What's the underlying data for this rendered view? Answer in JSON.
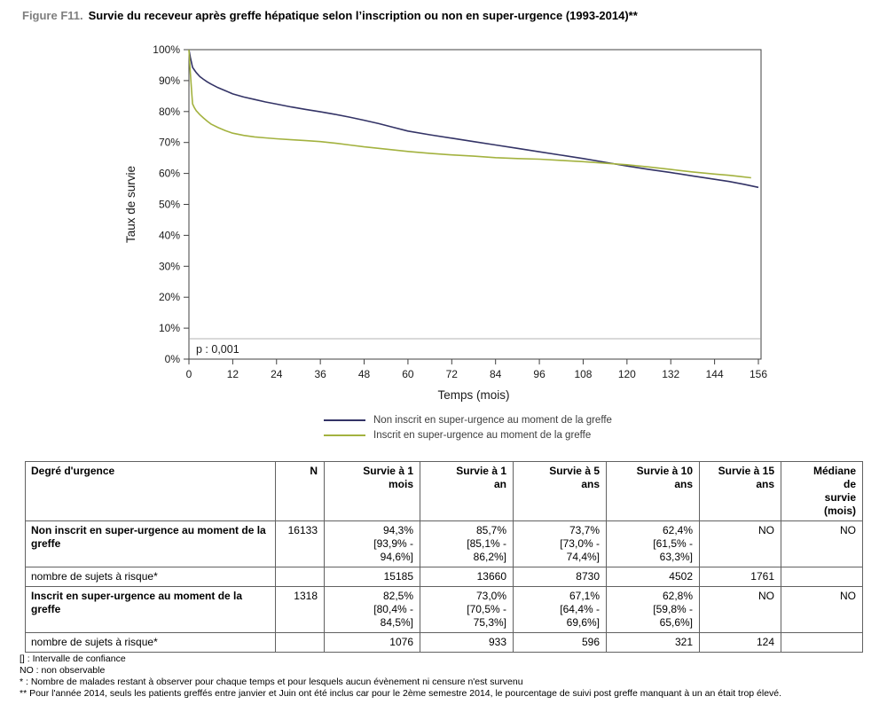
{
  "figure": {
    "label": "Figure F11.",
    "title": "Survie du receveur après greffe hépatique selon l’inscription ou non en super-urgence (1993-2014)**"
  },
  "chart_data": {
    "type": "line",
    "title": "",
    "xlabel": "Temps (mois)",
    "ylabel": "Taux de survie",
    "xlim": [
      0,
      156
    ],
    "ylim": [
      0,
      100
    ],
    "x_ticks": [
      0,
      12,
      24,
      36,
      48,
      60,
      72,
      84,
      96,
      108,
      120,
      132,
      144,
      156
    ],
    "y_tick_step": 10,
    "y_tick_suffix": "%",
    "grid": false,
    "legend_position": "bottom",
    "p_label": "p : 0,001",
    "series": [
      {
        "name": "Non inscrit en super-urgence au moment de la greffe",
        "color": "#333366",
        "points": [
          [
            0,
            100
          ],
          [
            0.4,
            97.5
          ],
          [
            0.8,
            95.3
          ],
          [
            1,
            94.3
          ],
          [
            1.5,
            93.4
          ],
          [
            2,
            92.6
          ],
          [
            3,
            91.3
          ],
          [
            4,
            90.4
          ],
          [
            5,
            89.6
          ],
          [
            6,
            88.9
          ],
          [
            8,
            87.7
          ],
          [
            10,
            86.7
          ],
          [
            12,
            85.7
          ],
          [
            15,
            84.7
          ],
          [
            18,
            83.9
          ],
          [
            21,
            83.1
          ],
          [
            24,
            82.4
          ],
          [
            28,
            81.5
          ],
          [
            32,
            80.7
          ],
          [
            36,
            79.9
          ],
          [
            40,
            79.1
          ],
          [
            44,
            78.2
          ],
          [
            48,
            77.2
          ],
          [
            52,
            76.1
          ],
          [
            56,
            74.9
          ],
          [
            60,
            73.7
          ],
          [
            66,
            72.5
          ],
          [
            72,
            71.4
          ],
          [
            78,
            70.3
          ],
          [
            84,
            69.2
          ],
          [
            90,
            68.1
          ],
          [
            96,
            67.0
          ],
          [
            102,
            65.9
          ],
          [
            108,
            64.8
          ],
          [
            114,
            63.6
          ],
          [
            120,
            62.4
          ],
          [
            126,
            61.3
          ],
          [
            132,
            60.3
          ],
          [
            138,
            59.2
          ],
          [
            144,
            58.1
          ],
          [
            148,
            57.4
          ],
          [
            152,
            56.5
          ],
          [
            156,
            55.5
          ]
        ]
      },
      {
        "name": "Inscrit en super-urgence au moment de la greffe",
        "color": "#a3b23f",
        "points": [
          [
            0,
            100
          ],
          [
            0.4,
            92.5
          ],
          [
            0.8,
            85.5
          ],
          [
            1,
            82.5
          ],
          [
            1.5,
            81.2
          ],
          [
            2,
            80.3
          ],
          [
            3,
            79.0
          ],
          [
            4,
            77.9
          ],
          [
            5,
            76.9
          ],
          [
            6,
            76.0
          ],
          [
            8,
            74.8
          ],
          [
            10,
            73.8
          ],
          [
            12,
            73.0
          ],
          [
            15,
            72.3
          ],
          [
            18,
            71.8
          ],
          [
            21,
            71.5
          ],
          [
            24,
            71.2
          ],
          [
            28,
            70.9
          ],
          [
            32,
            70.6
          ],
          [
            36,
            70.3
          ],
          [
            40,
            69.8
          ],
          [
            44,
            69.2
          ],
          [
            48,
            68.6
          ],
          [
            52,
            68.1
          ],
          [
            56,
            67.6
          ],
          [
            60,
            67.1
          ],
          [
            66,
            66.5
          ],
          [
            72,
            66.0
          ],
          [
            78,
            65.6
          ],
          [
            84,
            65.1
          ],
          [
            90,
            64.8
          ],
          [
            96,
            64.6
          ],
          [
            102,
            64.2
          ],
          [
            108,
            63.8
          ],
          [
            114,
            63.3
          ],
          [
            120,
            62.8
          ],
          [
            126,
            62.1
          ],
          [
            132,
            61.3
          ],
          [
            138,
            60.5
          ],
          [
            144,
            59.8
          ],
          [
            148,
            59.4
          ],
          [
            151,
            59.0
          ],
          [
            154,
            58.6
          ]
        ]
      }
    ]
  },
  "table": {
    "headers": [
      "Degré d'urgence",
      "N",
      "Survie à 1\nmois",
      "Survie à 1\nan",
      "Survie à 5\nans",
      "Survie à 10\nans",
      "Survie à 15\nans",
      "Médiane\nde\nsurvie\n(mois)"
    ],
    "rows": [
      {
        "label": "Non inscrit en super-urgence au moment de la greffe",
        "cells": [
          "16133",
          "94,3%\n[93,9% -\n94,6%]",
          "85,7%\n[85,1% -\n86,2%]",
          "73,7%\n[73,0% -\n74,4%]",
          "62,4%\n[61,5% -\n63,3%]",
          "NO",
          "NO"
        ]
      },
      {
        "label": "nombre de sujets à risque*",
        "cells": [
          "",
          "15185",
          "13660",
          "8730",
          "4502",
          "1761",
          ""
        ]
      },
      {
        "label": "Inscrit en super-urgence au moment de la greffe",
        "cells": [
          "1318",
          "82,5%\n[80,4% -\n84,5%]",
          "73,0%\n[70,5% -\n75,3%]",
          "67,1%\n[64,4% -\n69,6%]",
          "62,8%\n[59,8% -\n65,6%]",
          "NO",
          "NO"
        ]
      },
      {
        "label": "nombre de sujets à risque*",
        "cells": [
          "",
          "1076",
          "933",
          "596",
          "321",
          "124",
          ""
        ]
      }
    ]
  },
  "footnotes": [
    "[] : Intervalle de confiance",
    "NO : non observable",
    "* : Nombre de malades restant à observer pour chaque temps et pour lesquels aucun évènement ni censure n'est survenu",
    "** Pour l'année 2014, seuls les patients greffés entre janvier et Juin ont été inclus car pour le 2ème semestre 2014, le pourcentage de suivi post greffe manquant à un an était trop élevé."
  ]
}
